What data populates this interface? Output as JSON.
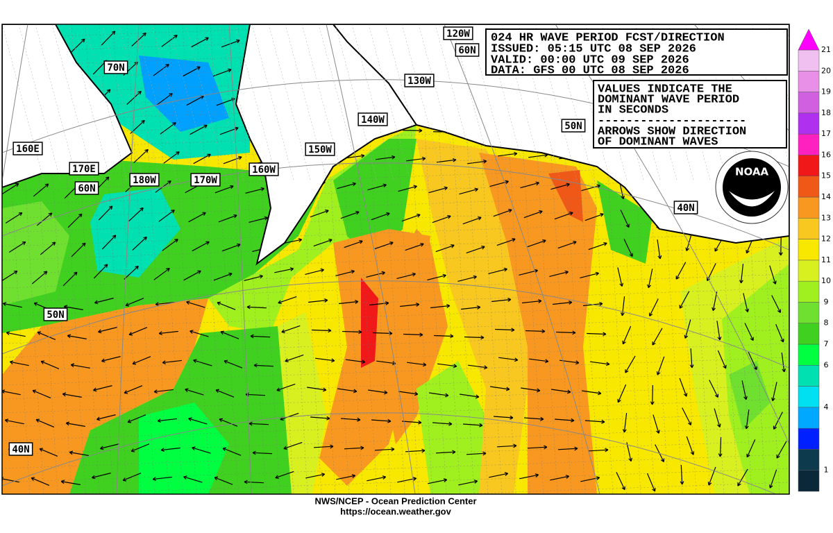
{
  "header": {
    "lines": [
      "024 HR WAVE PERIOD FCST/DIRECTION",
      "ISSUED: 05:15 UTC 08 SEP 2026",
      "VALID:   00:00 UTC 09 SEP 2026",
      "DATA:   GFS 00 UTC 08 SEP 2026"
    ]
  },
  "legend_box": {
    "lines": [
      "VALUES INDICATE THE",
      "DOMINANT WAVE PERIOD",
      "IN SECONDS",
      "---------------------",
      "ARROWS SHOW DIRECTION",
      "OF DOMINANT WAVES"
    ]
  },
  "map_labels": [
    "120W",
    "60N",
    "70N",
    "130W",
    "140W",
    "50N",
    "160E",
    "150W",
    "170E",
    "160W",
    "60N",
    "180W",
    "170W",
    "40N",
    "50N",
    "40N"
  ],
  "logo": {
    "text": "NOAA"
  },
  "colorbar": {
    "labels": [
      21,
      20,
      19,
      18,
      17,
      16,
      15,
      14,
      13,
      12,
      11,
      10,
      9,
      8,
      7,
      6,
      4,
      1
    ]
  },
  "footer": {
    "lines": [
      "NWS/NCEP - Ocean Prediction Center",
      "https://ocean.weather.gov"
    ]
  }
}
